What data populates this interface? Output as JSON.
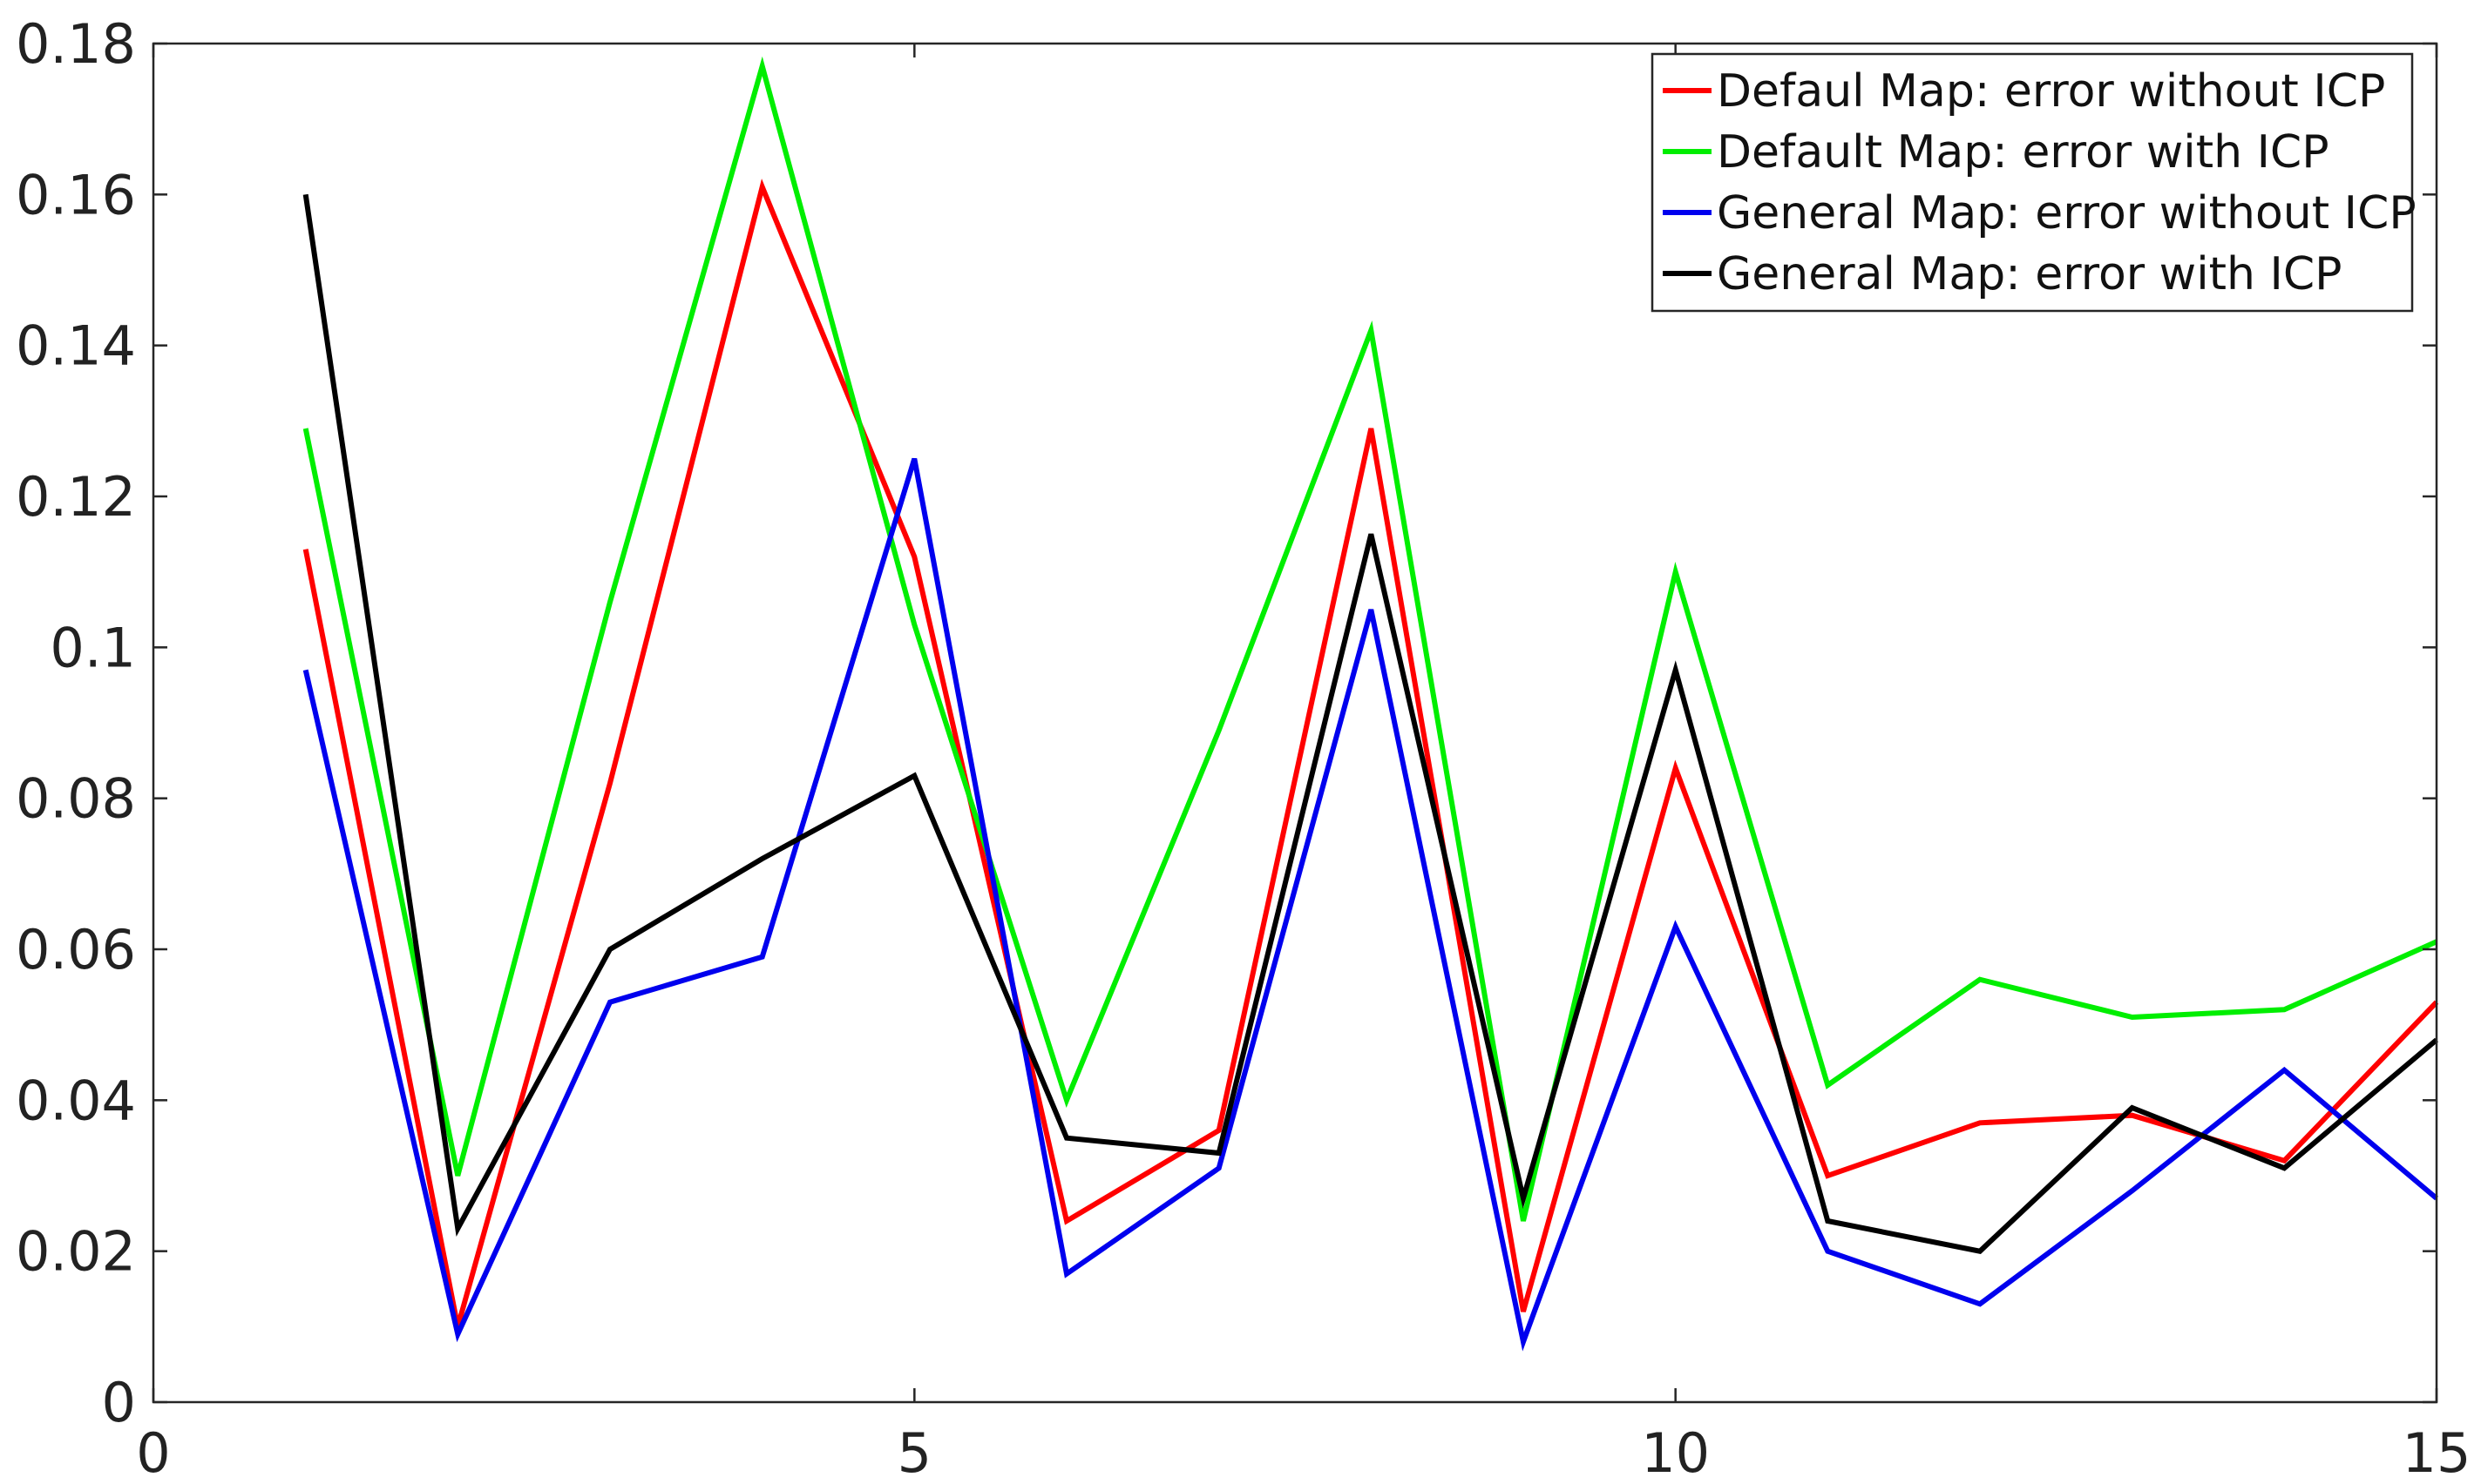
{
  "chart_data": {
    "type": "line",
    "title": "",
    "xlabel": "",
    "ylabel": "",
    "xlim": [
      0,
      15
    ],
    "ylim": [
      0,
      0.18
    ],
    "xticks": [
      0,
      5,
      10,
      15
    ],
    "xtick_labels": [
      "0",
      "5",
      "10",
      "15"
    ],
    "yticks": [
      0,
      0.02,
      0.04,
      0.06,
      0.08,
      0.1,
      0.12,
      0.14,
      0.16,
      0.18
    ],
    "ytick_labels": [
      "0",
      "0.02",
      "0.04",
      "0.06",
      "0.08",
      "0.1",
      "0.12",
      "0.14",
      "0.16",
      "0.18"
    ],
    "grid": false,
    "legend_position": "top-right",
    "x": [
      1,
      2,
      3,
      4,
      5,
      6,
      7,
      8,
      9,
      10,
      11,
      12,
      13,
      14,
      15
    ],
    "series": [
      {
        "name": "Defaul Map: error without ICP",
        "color": "#ff0000",
        "values": [
          0.113,
          0.01,
          0.082,
          0.161,
          0.112,
          0.024,
          0.036,
          0.129,
          0.012,
          0.084,
          0.03,
          0.037,
          0.038,
          0.032,
          0.053
        ]
      },
      {
        "name": "Default Map: error with ICP",
        "color": "#00ee00",
        "values": [
          0.129,
          0.03,
          0.106,
          0.177,
          0.103,
          0.04,
          0.089,
          0.142,
          0.024,
          0.11,
          0.042,
          0.056,
          0.051,
          0.052,
          0.061
        ]
      },
      {
        "name": "General Map: error without ICP",
        "color": "#0000ee",
        "values": [
          0.097,
          0.009,
          0.053,
          0.059,
          0.125,
          0.017,
          0.031,
          0.105,
          0.008,
          0.063,
          0.02,
          0.013,
          0.028,
          0.044,
          0.027
        ]
      },
      {
        "name": "General Map: error with ICP",
        "color": "#000000",
        "values": [
          0.16,
          0.023,
          0.06,
          0.072,
          0.083,
          0.035,
          0.033,
          0.115,
          0.027,
          0.097,
          0.024,
          0.02,
          0.039,
          0.031,
          0.048
        ]
      }
    ]
  }
}
